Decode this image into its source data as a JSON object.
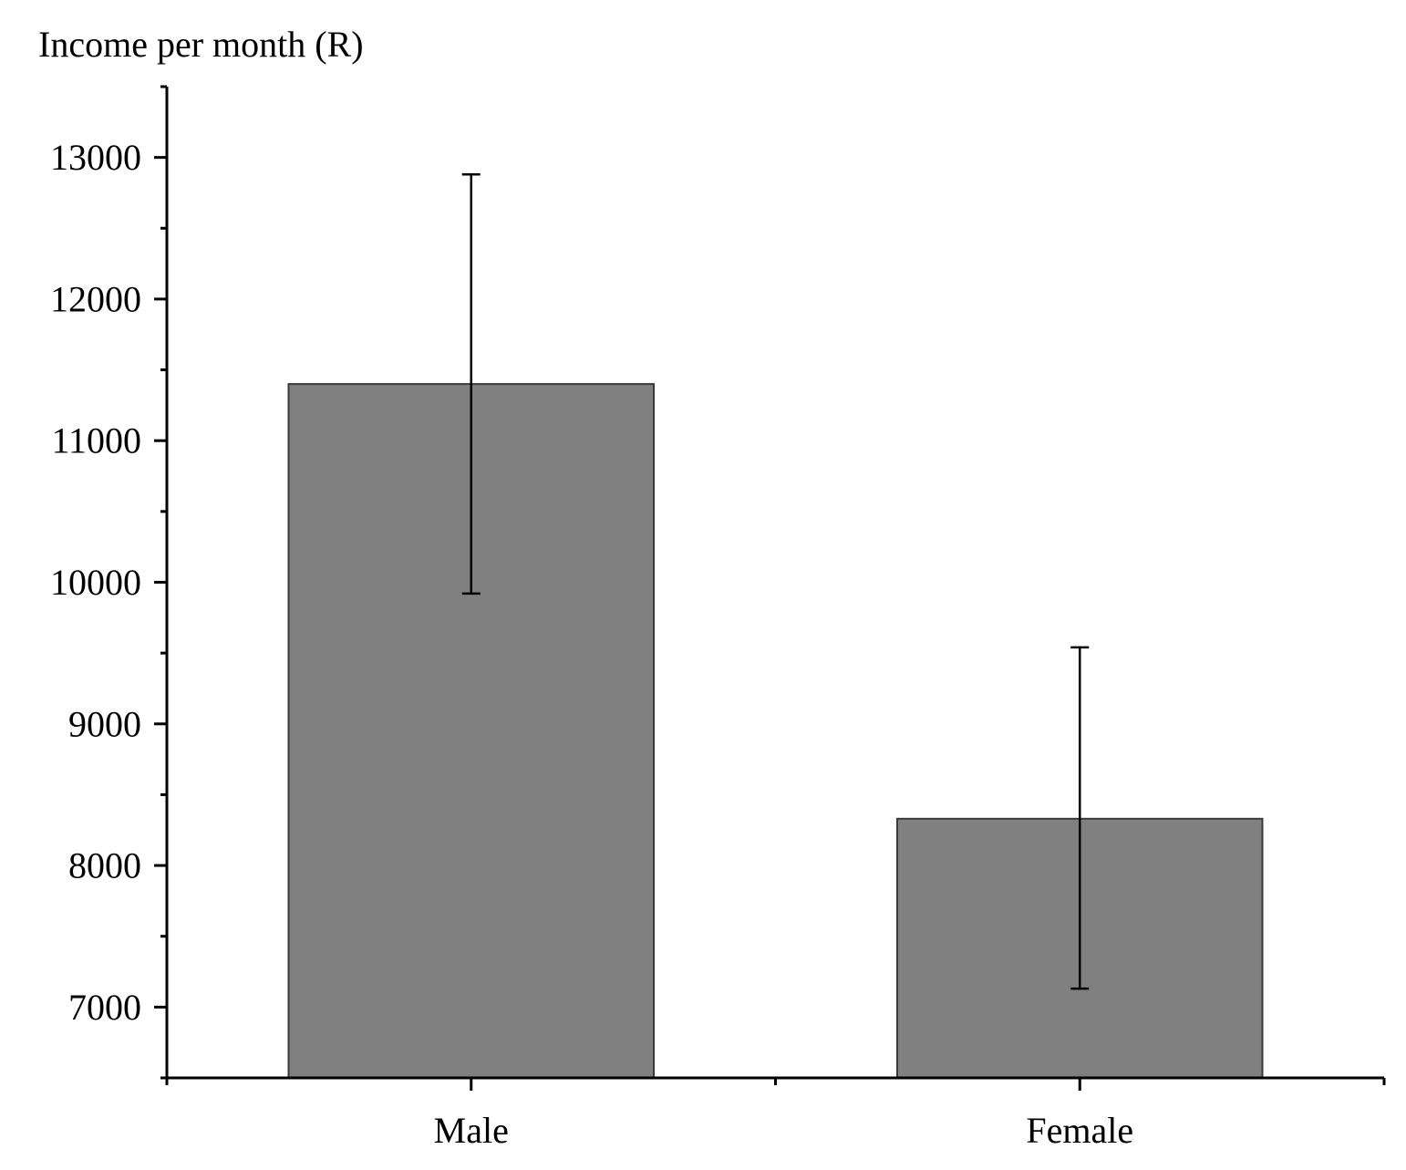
{
  "chart_data": {
    "type": "bar",
    "title": "",
    "xlabel": "",
    "ylabel": "Income per month (R)",
    "categories": [
      "Male",
      "Female"
    ],
    "values": [
      11400,
      8330
    ],
    "error_upper": [
      12880,
      9540
    ],
    "error_lower": [
      9920,
      7130
    ],
    "ylim": [
      6500,
      13500
    ],
    "yticks": [
      7000,
      8000,
      9000,
      10000,
      11000,
      12000,
      13000
    ],
    "ytick_labels": [
      "7000",
      "8000",
      "9000",
      "10000",
      "11000",
      "12000",
      "13000"
    ],
    "y_minor_step": 500,
    "grid": false,
    "bar_color": "#808080",
    "bar_edge_color": "#3a3a3a",
    "axis_color": "#000000"
  }
}
